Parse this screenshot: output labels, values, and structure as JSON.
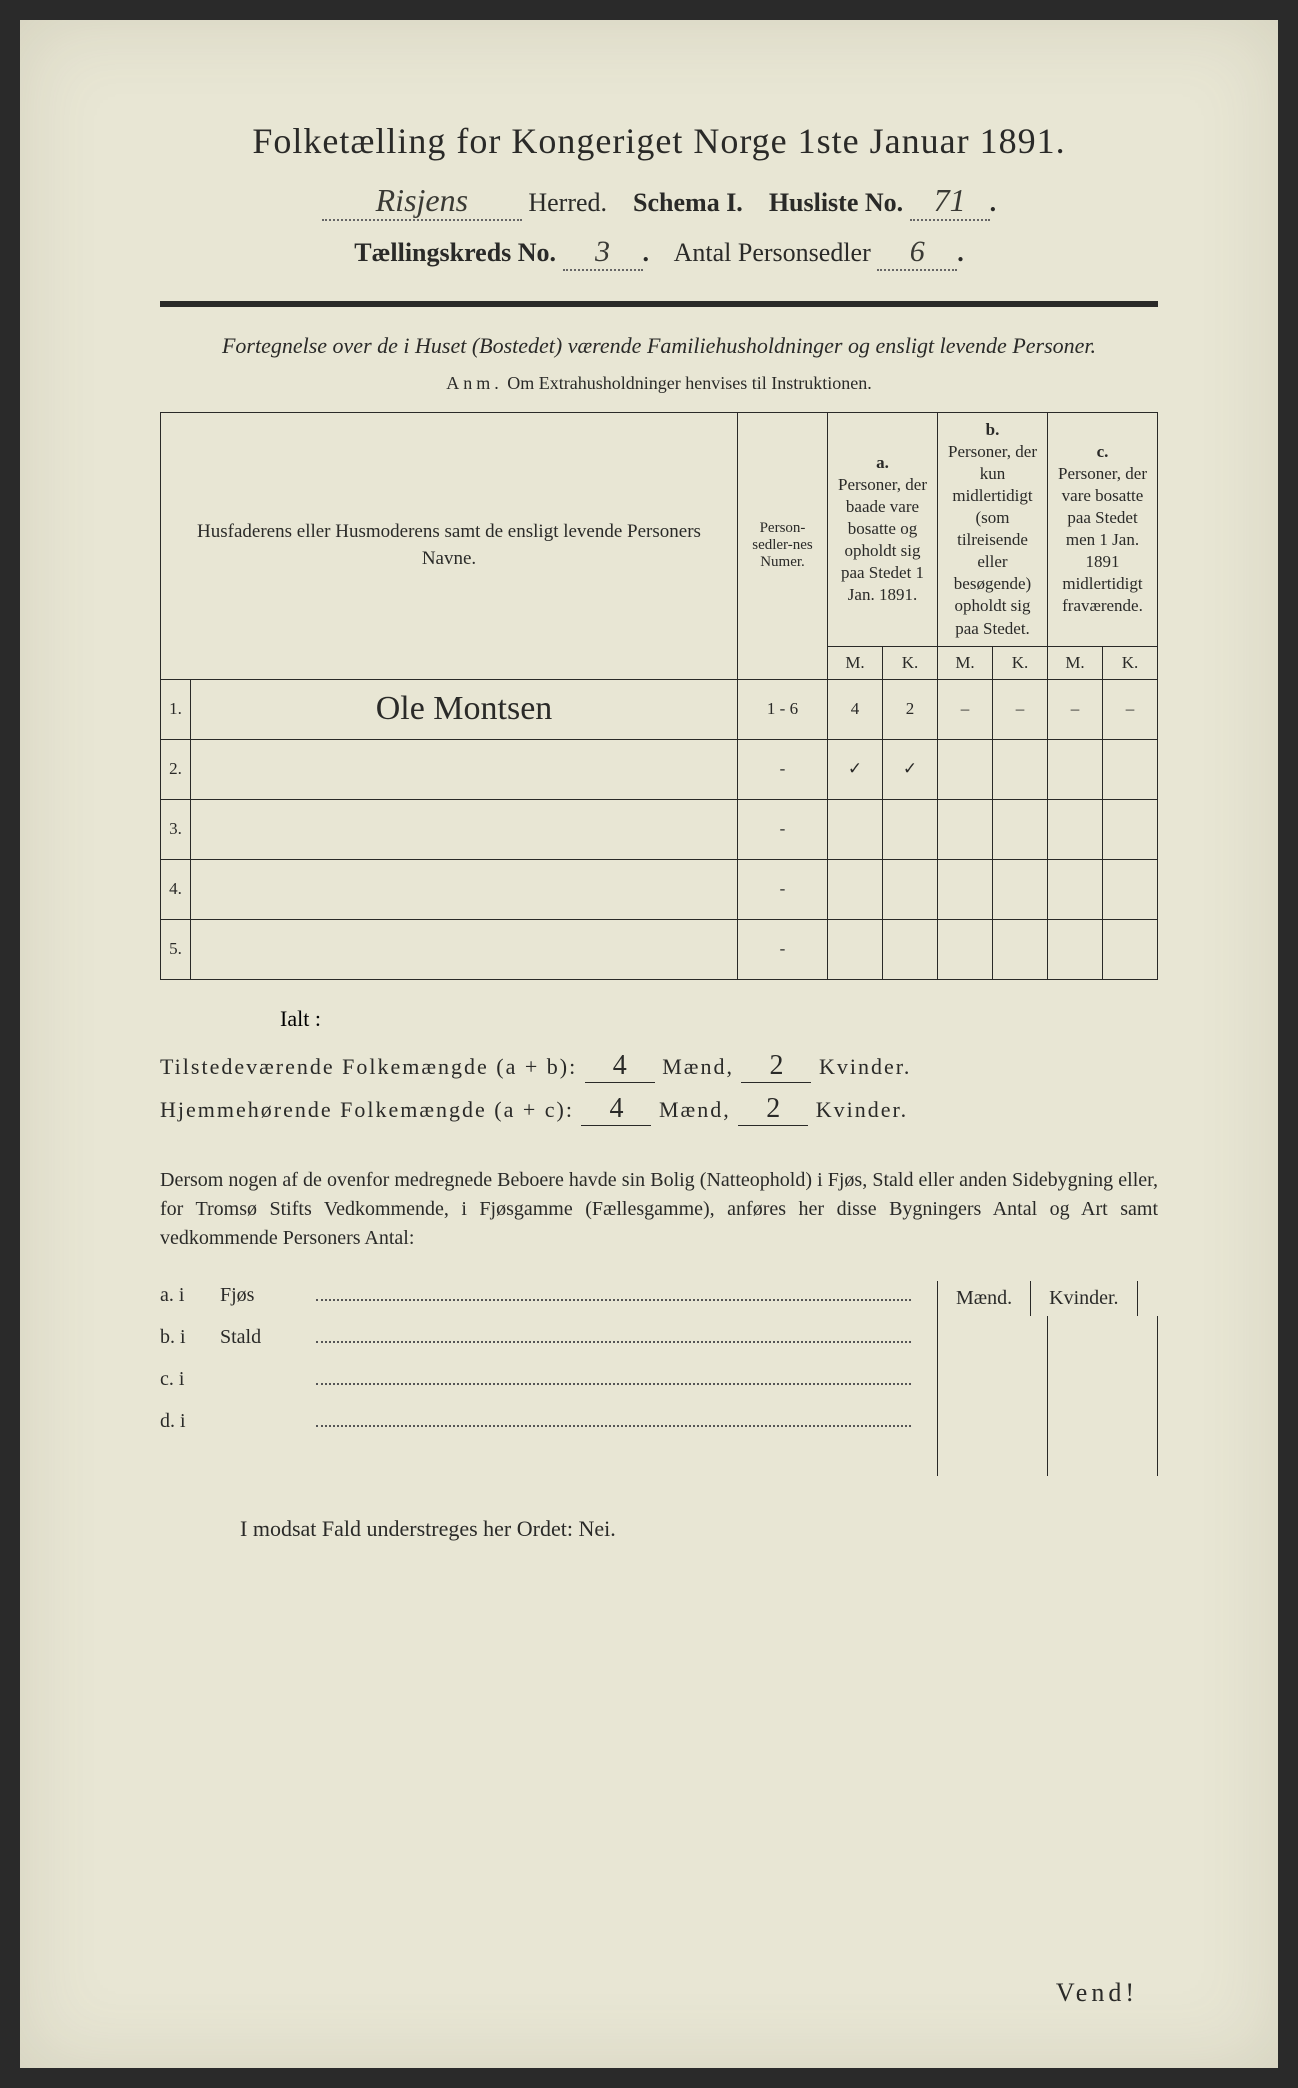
{
  "header": {
    "title": "Folketælling for Kongeriget Norge 1ste Januar 1891.",
    "herred_hand": "Risjens",
    "herred_label": "Herred.",
    "schema_label": "Schema I.",
    "husliste_label": "Husliste No.",
    "husliste_no": "71",
    "kreds_label": "Tællingskreds No.",
    "kreds_no": "3",
    "antal_label": "Antal Personsedler",
    "antal_no": "6"
  },
  "intro": {
    "line": "Fortegnelse over de i Huset (Bostedet) værende Familiehusholdninger og ensligt levende Personer.",
    "anm_label": "Anm.",
    "anm_text": "Om Extrahusholdninger henvises til Instruktionen."
  },
  "table": {
    "head_name": "Husfaderens eller Husmoderens samt de ensligt levende Personers Navne.",
    "head_numer": "Person-sedler-nes Numer.",
    "col_a_letter": "a.",
    "col_a": "Personer, der baade vare bosatte og opholdt sig paa Stedet 1 Jan. 1891.",
    "col_b_letter": "b.",
    "col_b": "Personer, der kun midlertidigt (som tilreisende eller besøgende) opholdt sig paa Stedet.",
    "col_c_letter": "c.",
    "col_c": "Personer, der vare bosatte paa Stedet men 1 Jan. 1891 midlertidigt fraværende.",
    "m": "M.",
    "k": "K.",
    "rows": [
      {
        "n": "1.",
        "name": "Ole Montsen",
        "numer": "1 - 6",
        "am": "4",
        "ak": "2",
        "bm": "–",
        "bk": "–",
        "cm": "–",
        "ck": "–"
      },
      {
        "n": "2.",
        "name": "",
        "numer": "-",
        "am": "✓",
        "ak": "✓",
        "bm": "",
        "bk": "",
        "cm": "",
        "ck": ""
      },
      {
        "n": "3.",
        "name": "",
        "numer": "-",
        "am": "",
        "ak": "",
        "bm": "",
        "bk": "",
        "cm": "",
        "ck": ""
      },
      {
        "n": "4.",
        "name": "",
        "numer": "-",
        "am": "",
        "ak": "",
        "bm": "",
        "bk": "",
        "cm": "",
        "ck": ""
      },
      {
        "n": "5.",
        "name": "",
        "numer": "-",
        "am": "",
        "ak": "",
        "bm": "",
        "bk": "",
        "cm": "",
        "ck": ""
      }
    ]
  },
  "totals": {
    "ialt": "Ialt :",
    "line1_label": "Tilstedeværende Folkemængde (a + b):",
    "line2_label": "Hjemmehørende Folkemængde (a + c):",
    "maend": "Mænd,",
    "kvinder": "Kvinder.",
    "l1_m": "4",
    "l1_k": "2",
    "l2_m": "4",
    "l2_k": "2"
  },
  "para": {
    "text": "Dersom nogen af de ovenfor medregnede Beboere havde sin Bolig (Natteophold) i Fjøs, Stald eller anden Sidebygning eller, for Tromsø Stifts Vedkommende, i Fjøsgamme (Fællesgamme), anføres her disse Bygningers Antal og Art samt vedkommende Personers Antal:"
  },
  "bygning": {
    "maend": "Mænd.",
    "kvinder": "Kvinder.",
    "rows": [
      {
        "lbl": "a.  i",
        "txt": "Fjøs"
      },
      {
        "lbl": "b.  i",
        "txt": "Stald"
      },
      {
        "lbl": "c.  i",
        "txt": ""
      },
      {
        "lbl": "d.  i",
        "txt": ""
      }
    ]
  },
  "nei": "I modsat Fald understreges her Ordet: Nei.",
  "vend": "Vend!",
  "colors": {
    "paper": "#e8e6d4",
    "ink": "#2a2a28",
    "hand": "#3a3a35"
  }
}
